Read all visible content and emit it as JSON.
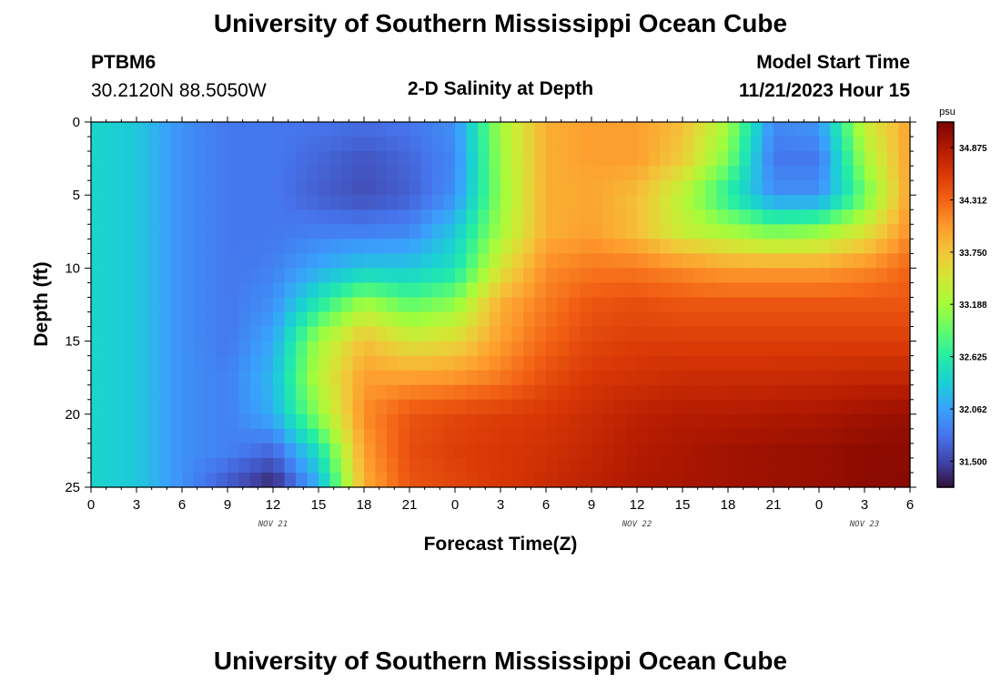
{
  "page": {
    "title": "University of Southern Mississippi Ocean Cube",
    "bottom_title": "University of Southern Mississippi Ocean Cube",
    "station_id": "PTBM6",
    "coordinates": "30.2120N  88.5050W",
    "subtitle": "2-D Salinity at Depth",
    "model_start_label": "Model Start Time",
    "model_start_value": "11/21/2023 Hour 15"
  },
  "chart_data": {
    "type": "heatmap",
    "title": "2-D Salinity at Depth",
    "xlabel": "Forecast Time(Z)",
    "ylabel": "Depth (ft)",
    "x_range_hours": [
      0,
      54
    ],
    "y_range_ft": [
      0,
      25
    ],
    "x_ticks": [
      "0",
      "3",
      "6",
      "9",
      "12",
      "15",
      "18",
      "21",
      "0",
      "3",
      "6",
      "9",
      "12",
      "15",
      "18",
      "21",
      "0",
      "3",
      "6"
    ],
    "y_ticks": [
      "0",
      "5",
      "10",
      "15",
      "20",
      "25"
    ],
    "date_labels": [
      {
        "label": "NOV 21",
        "hour": 12
      },
      {
        "label": "NOV 22",
        "hour": 36
      },
      {
        "label": "NOV 23",
        "hour": 51
      }
    ],
    "colorbar": {
      "unit": "psu",
      "min": 31.22,
      "max": 35.15,
      "ticks": [
        "34.875",
        "34.312",
        "33.750",
        "33.188",
        "32.625",
        "32.062",
        "31.500"
      ],
      "colors": [
        "#30123b",
        "#4145ab",
        "#4675ed",
        "#39a2fc",
        "#1bcfd4",
        "#24eca6",
        "#61fc6c",
        "#a4fc3b",
        "#d1e834",
        "#f3c63a",
        "#fe9b2d",
        "#f36315",
        "#d93806",
        "#b11901",
        "#7a0402"
      ]
    },
    "salinity_grid": {
      "columns_hours": [
        0,
        3,
        6,
        9,
        12,
        15,
        18,
        21,
        24,
        27,
        30,
        33,
        36,
        39,
        42,
        45,
        48,
        51,
        54
      ],
      "rows_depth_ft": [
        0,
        2.5,
        5,
        7.5,
        10,
        12.5,
        15,
        17.5,
        20,
        22.5,
        25
      ],
      "values_psu": [
        [
          32.4,
          32.3,
          31.95,
          31.8,
          31.8,
          31.78,
          31.75,
          31.8,
          31.95,
          33.2,
          33.9,
          34.0,
          34.0,
          33.8,
          33.2,
          31.9,
          32.0,
          33.4,
          34.0
        ],
        [
          32.4,
          32.3,
          31.95,
          31.8,
          31.8,
          31.7,
          31.6,
          31.7,
          31.9,
          33.15,
          33.9,
          34.0,
          34.0,
          33.7,
          33.0,
          31.8,
          31.8,
          33.2,
          34.0
        ],
        [
          32.4,
          32.3,
          31.95,
          31.8,
          31.8,
          31.65,
          31.55,
          31.65,
          31.95,
          33.1,
          33.9,
          33.95,
          33.8,
          33.3,
          32.6,
          31.95,
          31.95,
          32.9,
          34.0
        ],
        [
          32.4,
          32.3,
          31.95,
          31.8,
          31.8,
          31.85,
          31.85,
          31.9,
          32.3,
          33.2,
          33.9,
          34.0,
          33.8,
          33.4,
          33.2,
          33.0,
          33.1,
          33.5,
          34.1
        ],
        [
          32.4,
          32.3,
          31.95,
          31.8,
          31.85,
          32.1,
          32.3,
          32.3,
          32.5,
          33.5,
          34.1,
          34.2,
          34.2,
          34.1,
          34.0,
          34.0,
          34.0,
          34.1,
          34.3
        ],
        [
          32.4,
          32.3,
          31.95,
          31.8,
          31.95,
          32.6,
          33.2,
          32.9,
          33.1,
          33.9,
          34.2,
          34.4,
          34.45,
          34.4,
          34.4,
          34.4,
          34.4,
          34.4,
          34.4
        ],
        [
          32.4,
          32.3,
          31.95,
          31.8,
          32.1,
          33.2,
          33.8,
          33.5,
          33.6,
          34.0,
          34.3,
          34.5,
          34.55,
          34.55,
          34.55,
          34.55,
          34.55,
          34.55,
          34.55
        ],
        [
          32.4,
          32.3,
          31.95,
          31.85,
          32.2,
          33.3,
          34.0,
          34.0,
          34.05,
          34.2,
          34.45,
          34.6,
          34.65,
          34.7,
          34.7,
          34.7,
          34.72,
          34.75,
          34.75
        ],
        [
          32.4,
          32.3,
          31.95,
          31.85,
          32.15,
          33.1,
          34.1,
          34.4,
          34.5,
          34.55,
          34.6,
          34.7,
          34.8,
          34.85,
          34.85,
          34.88,
          34.9,
          34.95,
          35.0
        ],
        [
          32.4,
          32.3,
          31.95,
          31.85,
          31.7,
          32.5,
          34.0,
          34.45,
          34.55,
          34.6,
          34.65,
          34.75,
          34.85,
          34.9,
          34.95,
          34.98,
          35.0,
          35.05,
          35.05
        ],
        [
          32.4,
          32.3,
          31.95,
          31.6,
          31.3,
          32.1,
          33.9,
          34.4,
          34.5,
          34.6,
          34.7,
          34.8,
          34.88,
          34.92,
          34.95,
          34.98,
          35.0,
          35.05,
          35.08
        ]
      ]
    }
  }
}
